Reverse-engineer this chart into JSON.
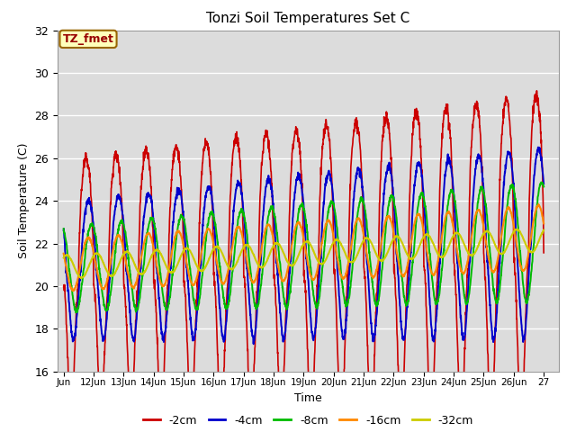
{
  "title": "Tonzi Soil Temperatures Set C",
  "ylabel": "Soil Temperature (C)",
  "xlabel": "Time",
  "ylim": [
    16,
    32
  ],
  "annotation": "TZ_fmet",
  "bg_color": "#dcdcdc",
  "fig_color": "#ffffff",
  "xtick_labels": [
    "Jun",
    "12Jun",
    "13Jun",
    "14Jun",
    "15Jun",
    "16Jun",
    "17Jun",
    "18Jun",
    "19Jun",
    "20Jun",
    "21Jun",
    "22Jun",
    "23Jun",
    "24Jun",
    "25Jun",
    "26Jun",
    "27"
  ],
  "legend_labels": [
    "-2cm",
    "-4cm",
    "-8cm",
    "-16cm",
    "-32cm"
  ],
  "legend_colors": [
    "#cc0000",
    "#0000cc",
    "#00bb00",
    "#ff8800",
    "#cccc00"
  ]
}
